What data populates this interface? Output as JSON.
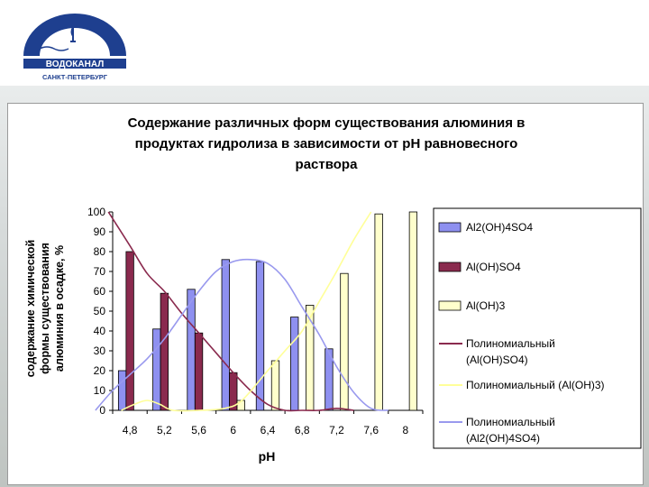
{
  "logo": {
    "name": "ВОДОКАНАЛ",
    "city": "САНКТ-ПЕТЕРБУРГ",
    "color": "#1e3f8f"
  },
  "chart_data": {
    "type": "bar",
    "title_lines": [
      "Содержание различных форм существования алюминия в",
      "продуктах гидролиза в зависимости от рН равновесного",
      "раствора"
    ],
    "xlabel": "pH",
    "ylabel_lines": [
      "содержание химической",
      "формы существования",
      "алюминия в осадке, %"
    ],
    "categories": [
      "4,8",
      "5,2",
      "5,6",
      "6",
      "6,4",
      "6,8",
      "7,2",
      "7,6",
      "8"
    ],
    "ylim": [
      0,
      100
    ],
    "yticks": [
      0,
      10,
      20,
      30,
      40,
      50,
      60,
      70,
      80,
      90,
      100
    ],
    "grid": false,
    "legend_position": "right",
    "series": [
      {
        "name": "Al2(OH)4SO4",
        "kind": "bar",
        "color": "#8e90f0",
        "values": [
          20,
          41,
          61,
          76,
          75,
          47,
          31,
          0,
          0
        ]
      },
      {
        "name": "Al(OH)SO4",
        "kind": "bar",
        "color": "#8a2a4e",
        "values": [
          80,
          59,
          39,
          19,
          0,
          0,
          0,
          0,
          0
        ]
      },
      {
        "name": "Al(OH)3",
        "kind": "bar",
        "color": "#ffffcc",
        "values": [
          0,
          0,
          0,
          5,
          25,
          53,
          69,
          99,
          100
        ]
      }
    ],
    "trendlines": [
      {
        "name": "Полиномиальный (Al(OH)SO4)",
        "color": "#8a2a4e",
        "x": [
          4.55,
          4.8,
          5.0,
          5.2,
          5.4,
          5.6,
          5.8,
          6.0,
          6.2,
          6.4,
          6.6,
          6.8,
          7.0,
          7.2,
          7.4
        ],
        "y": [
          100,
          83,
          69,
          60,
          49,
          39,
          29,
          19,
          10,
          3,
          0,
          0,
          0,
          1,
          0
        ]
      },
      {
        "name": "Полиномиальный (Al(OH)3)",
        "color": "#ffff99",
        "x": [
          4.7,
          4.85,
          5.0,
          5.15,
          5.3,
          5.6,
          5.9,
          6.1,
          6.4,
          6.6,
          6.8,
          7.0,
          7.2,
          7.4,
          7.6
        ],
        "y": [
          0,
          3,
          5,
          3,
          0,
          0,
          1,
          5,
          20,
          30,
          40,
          55,
          70,
          86,
          100
        ]
      },
      {
        "name": "Полиномиальный (Al2(OH)4SO4)",
        "color": "#9999ee",
        "x": [
          4.4,
          4.6,
          4.8,
          5.0,
          5.2,
          5.4,
          5.6,
          5.8,
          6.0,
          6.2,
          6.4,
          6.6,
          6.8,
          7.0,
          7.2,
          7.4,
          7.6,
          7.8
        ],
        "y": [
          0,
          10,
          18,
          26,
          36,
          48,
          60,
          70,
          75,
          76,
          74,
          66,
          52,
          38,
          22,
          9,
          1,
          0
        ]
      }
    ],
    "legend_entries": [
      {
        "kind": "bar",
        "color": "#8e90f0",
        "lines": [
          "Al2(OH)4SO4"
        ]
      },
      {
        "kind": "bar",
        "color": "#8a2a4e",
        "lines": [
          "Al(OH)SO4"
        ]
      },
      {
        "kind": "bar",
        "color": "#ffffcc",
        "lines": [
          "Al(OH)3"
        ]
      },
      {
        "kind": "line",
        "color": "#8a2a4e",
        "lines": [
          "Полиномиальный",
          "(Al(OH)SO4)"
        ]
      },
      {
        "kind": "line",
        "color": "#ffff99",
        "lines": [
          "Полиномиальный (Al(OH)3)"
        ]
      },
      {
        "kind": "line",
        "color": "#9999ee",
        "lines": [
          "Полиномиальный",
          "(Al2(OH)4SO4)"
        ]
      }
    ]
  }
}
